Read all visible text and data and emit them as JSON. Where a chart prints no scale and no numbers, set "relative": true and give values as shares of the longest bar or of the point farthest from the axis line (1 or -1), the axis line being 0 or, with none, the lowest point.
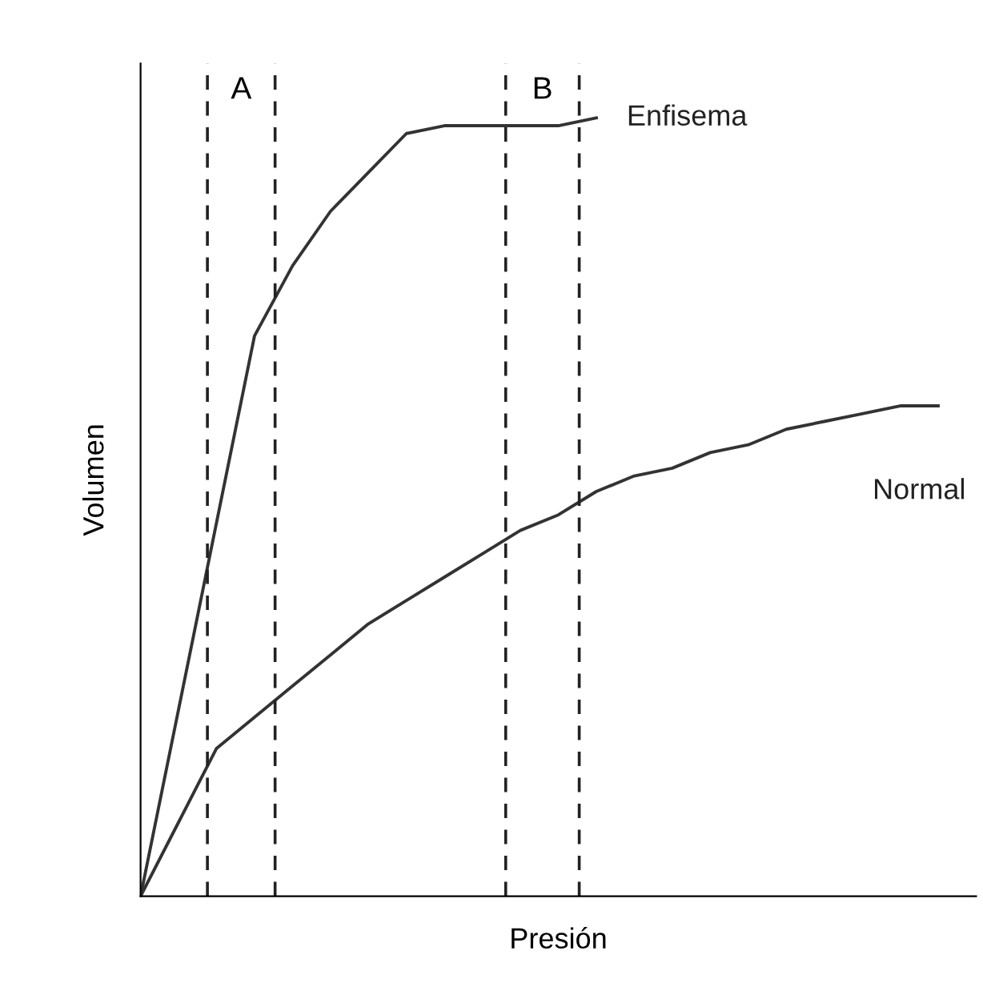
{
  "chart_data": {
    "type": "line",
    "relative": true,
    "xlabel": "Presión",
    "ylabel": "Volumen",
    "tick_labels": false,
    "legend": false,
    "marker": "none",
    "line_style": "solid",
    "categories": [
      null,
      null,
      null,
      null,
      null,
      null,
      null,
      null,
      null,
      null,
      null,
      null,
      null,
      null,
      null,
      null,
      null,
      null,
      null,
      null,
      null,
      null,
      null
    ],
    "series": [
      {
        "name": "Enfisema",
        "color": "#333333",
        "values": [
          0,
          0.24,
          0.48,
          0.72,
          0.81,
          0.88,
          0.93,
          0.98,
          0.99,
          0.99,
          0.99,
          0.99,
          1.0,
          null,
          null,
          null,
          null,
          null,
          null,
          null,
          null,
          null,
          null
        ]
      },
      {
        "name": "Normal",
        "color": "#333333",
        "values": [
          0,
          0.095,
          0.19,
          0.23,
          0.27,
          0.31,
          0.35,
          0.38,
          0.41,
          0.44,
          0.47,
          0.49,
          0.52,
          0.54,
          0.55,
          0.57,
          0.58,
          0.6,
          0.61,
          0.62,
          0.63,
          0.63,
          null
        ]
      }
    ],
    "annotations": [
      "A",
      "B"
    ]
  }
}
